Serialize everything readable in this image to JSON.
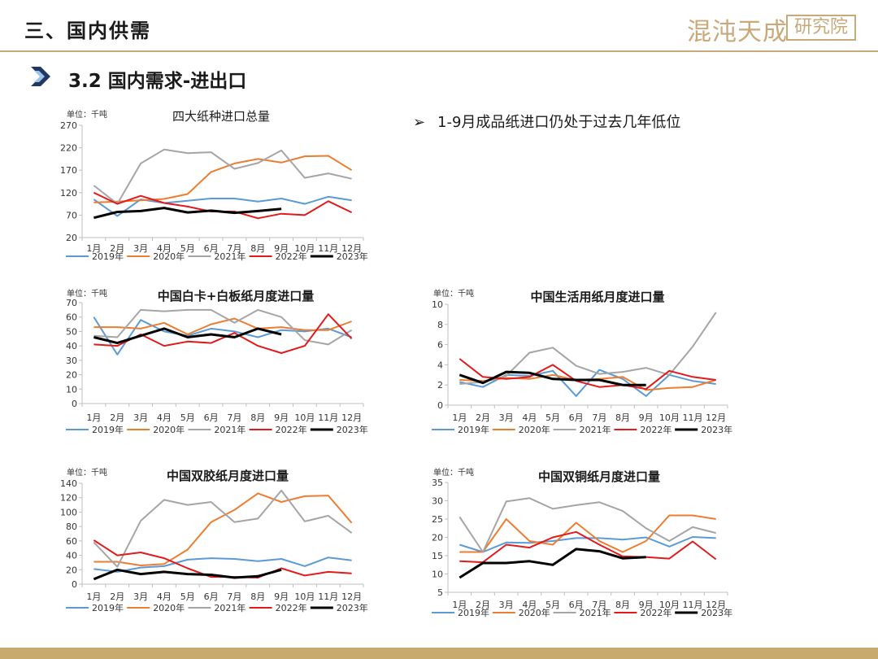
{
  "header": {
    "section_title": "三、国内供需",
    "logo_text_a": "混沌天成",
    "logo_text_b": "研究院"
  },
  "sub_title": "3.2 国内需求-进出口",
  "note": {
    "bullet": "➢",
    "text": "1-9月成品纸进口仍处于过去几年低位"
  },
  "colors": {
    "accent": "#c8a97a",
    "chevron_dark": "#1f3864",
    "chevron_light": "#9dc3e6"
  },
  "chart_data": [
    {
      "id": "c1",
      "type": "line",
      "title": "四大纸种进口总量",
      "unit": "单位：千吨",
      "categories": [
        "1月",
        "2月",
        "3月",
        "4月",
        "5月",
        "6月",
        "7月",
        "8月",
        "9月",
        "10月",
        "11月",
        "12月"
      ],
      "ylim": [
        20,
        270
      ],
      "yticks": [
        20,
        70,
        120,
        170,
        220,
        270
      ],
      "series": [
        {
          "name": "2019年",
          "color": "#5b9bd5",
          "values": [
            105,
            68,
            105,
            97,
            102,
            107,
            107,
            100,
            107,
            95,
            111,
            103
          ]
        },
        {
          "name": "2020年",
          "color": "#ed7d31",
          "values": [
            98,
            100,
            103,
            106,
            117,
            166,
            185,
            195,
            187,
            201,
            202,
            170
          ]
        },
        {
          "name": "2021年",
          "color": "#a5a5a5",
          "values": [
            136,
            95,
            185,
            216,
            208,
            210,
            173,
            186,
            214,
            153,
            163,
            151
          ]
        },
        {
          "name": "2022年",
          "color": "#e31a1c",
          "values": [
            120,
            95,
            113,
            97,
            89,
            78,
            78,
            63,
            73,
            70,
            101,
            76
          ]
        },
        {
          "name": "2023年",
          "color": "#000000",
          "values": [
            64,
            77,
            79,
            86,
            76,
            80,
            75,
            79,
            84,
            null,
            null,
            null
          ]
        }
      ]
    },
    {
      "id": "c2",
      "type": "line",
      "title": "中国白卡+白板纸月度进口量",
      "unit": "单位：千吨",
      "categories": [
        "1月",
        "2月",
        "3月",
        "4月",
        "5月",
        "6月",
        "7月",
        "8月",
        "9月",
        "10月",
        "11月",
        "12月"
      ],
      "ylim": [
        0,
        70
      ],
      "yticks": [
        0,
        10,
        20,
        30,
        40,
        50,
        60,
        70
      ],
      "series": [
        {
          "name": "2019年",
          "color": "#5b9bd5",
          "values": [
            60,
            34,
            58,
            50,
            47,
            52,
            50,
            46,
            51,
            50,
            52,
            46
          ]
        },
        {
          "name": "2020年",
          "color": "#ed7d31",
          "values": [
            53,
            53,
            52,
            56,
            48,
            55,
            59,
            52,
            53,
            51,
            51,
            57
          ]
        },
        {
          "name": "2021年",
          "color": "#a5a5a5",
          "values": [
            47,
            46,
            65,
            64,
            65,
            65,
            56,
            65,
            60,
            44,
            41,
            51
          ]
        },
        {
          "name": "2022年",
          "color": "#e31a1c",
          "values": [
            41,
            40,
            48,
            40,
            43,
            42,
            49,
            40,
            35,
            40,
            62,
            45
          ]
        },
        {
          "name": "2023年",
          "color": "#000000",
          "values": [
            46,
            42,
            47,
            52,
            46,
            48,
            46,
            52,
            48,
            null,
            null,
            null
          ]
        }
      ]
    },
    {
      "id": "c3",
      "type": "line",
      "title": "中国生活用纸月度进口量",
      "unit": "单位：千吨",
      "categories": [
        "1月",
        "2月",
        "3月",
        "4月",
        "5月",
        "6月",
        "7月",
        "8月",
        "9月",
        "10月",
        "11月",
        "12月"
      ],
      "ylim": [
        0,
        10
      ],
      "yticks": [
        0,
        2,
        4,
        6,
        8,
        10
      ],
      "series": [
        {
          "name": "2019年",
          "color": "#5b9bd5",
          "values": [
            2.3,
            1.8,
            3.0,
            2.9,
            3.4,
            0.9,
            3.5,
            2.6,
            0.9,
            3.0,
            2.4,
            2.1
          ]
        },
        {
          "name": "2020年",
          "color": "#ed7d31",
          "values": [
            2.5,
            2.4,
            2.7,
            2.6,
            3.0,
            2.5,
            2.6,
            2.8,
            1.5,
            1.7,
            1.8,
            2.5
          ]
        },
        {
          "name": "2021年",
          "color": "#a5a5a5",
          "values": [
            2.1,
            2.3,
            2.9,
            5.2,
            5.7,
            3.9,
            3.1,
            3.3,
            3.7,
            3.0,
            5.8,
            9.2
          ]
        },
        {
          "name": "2022年",
          "color": "#e31a1c",
          "values": [
            4.6,
            2.8,
            2.6,
            2.8,
            4.0,
            2.4,
            1.8,
            2.0,
            1.6,
            3.4,
            2.8,
            2.5
          ]
        },
        {
          "name": "2023年",
          "color": "#000000",
          "values": [
            3.0,
            2.2,
            3.3,
            3.2,
            2.6,
            2.5,
            2.5,
            2.0,
            2.0,
            null,
            null,
            null
          ]
        }
      ]
    },
    {
      "id": "c4",
      "type": "line",
      "title": "中国双胶纸月度进口量",
      "unit": "单位：千吨",
      "categories": [
        "1月",
        "2月",
        "3月",
        "4月",
        "5月",
        "6月",
        "7月",
        "8月",
        "9月",
        "10月",
        "11月",
        "12月"
      ],
      "ylim": [
        0,
        140
      ],
      "yticks": [
        0,
        20,
        40,
        60,
        80,
        100,
        120,
        140
      ],
      "series": [
        {
          "name": "2019年",
          "color": "#5b9bd5",
          "values": [
            21,
            17,
            23,
            25,
            34,
            36,
            35,
            32,
            35,
            25,
            37,
            33
          ]
        },
        {
          "name": "2020年",
          "color": "#ed7d31",
          "values": [
            31,
            31,
            26,
            28,
            48,
            86,
            103,
            126,
            114,
            122,
            123,
            85
          ]
        },
        {
          "name": "2021年",
          "color": "#a5a5a5",
          "values": [
            58,
            24,
            88,
            117,
            110,
            114,
            86,
            91,
            130,
            87,
            95,
            71
          ]
        },
        {
          "name": "2022年",
          "color": "#e31a1c",
          "values": [
            61,
            40,
            44,
            36,
            22,
            10,
            10,
            9,
            22,
            12,
            17,
            15
          ]
        },
        {
          "name": "2023年",
          "color": "#000000",
          "values": [
            7,
            20,
            14,
            17,
            14,
            13,
            9,
            11,
            20,
            null,
            null,
            null
          ]
        }
      ]
    },
    {
      "id": "c5",
      "type": "line",
      "title": "中国双铜纸月度进口量",
      "unit": "单位：千吨",
      "categories": [
        "1月",
        "2月",
        "3月",
        "4月",
        "5月",
        "6月",
        "7月",
        "8月",
        "9月",
        "10月",
        "11月",
        "12月"
      ],
      "ylim": [
        5,
        35
      ],
      "yticks": [
        5,
        10,
        15,
        20,
        25,
        30,
        35
      ],
      "series": [
        {
          "name": "2019年",
          "color": "#5b9bd5",
          "values": [
            18,
            16,
            18.6,
            18.5,
            19,
            19.8,
            19.8,
            19.4,
            20,
            17.5,
            20.1,
            19.8
          ]
        },
        {
          "name": "2020年",
          "color": "#ed7d31",
          "values": [
            16,
            16,
            25,
            19,
            18,
            24,
            19,
            16,
            19,
            26,
            26,
            25
          ]
        },
        {
          "name": "2021年",
          "color": "#a5a5a5",
          "values": [
            25.6,
            16,
            29.8,
            30.7,
            27.8,
            28.8,
            29.6,
            27.2,
            22.5,
            19,
            22.8,
            21.2
          ]
        },
        {
          "name": "2022年",
          "color": "#e31a1c",
          "values": [
            13.5,
            13.2,
            18,
            17.2,
            20,
            21.5,
            18,
            14.8,
            14.6,
            14.2,
            18.9,
            14
          ]
        },
        {
          "name": "2023年",
          "color": "#000000",
          "values": [
            9,
            13,
            13,
            13.5,
            12.5,
            16.8,
            16.2,
            14.3,
            14.6,
            null,
            null,
            null
          ]
        }
      ]
    }
  ]
}
